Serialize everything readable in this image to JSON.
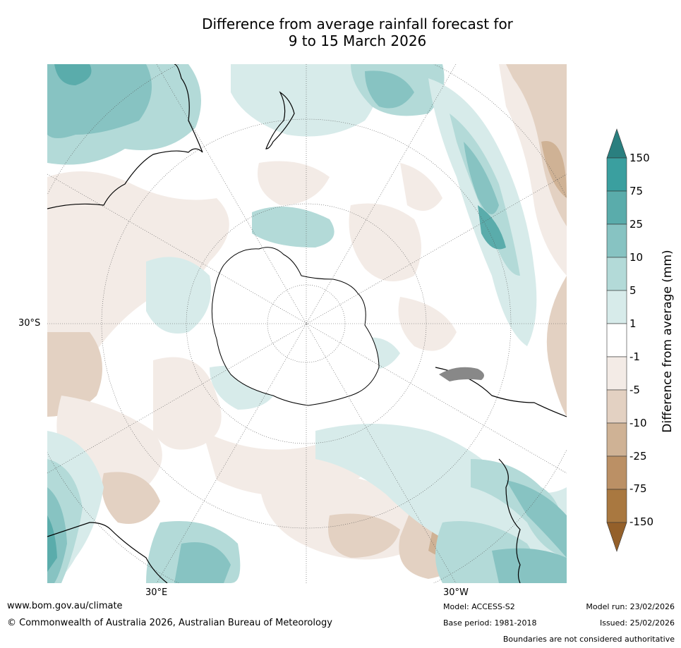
{
  "title_line1": "Difference from average rainfall forecast for",
  "title_line2": "9 to 15 March 2026",
  "colorbar": {
    "title": "Difference from average (mm)",
    "labels": [
      "150",
      "75",
      "25",
      "10",
      "5",
      "1",
      "-1",
      "-5",
      "-10",
      "-25",
      "-75",
      "-150"
    ],
    "colors": [
      "#2a7f7f",
      "#3a9f9f",
      "#5aacab",
      "#87c3c2",
      "#b3dad8",
      "#d7ebea",
      "#ffffff",
      "#f3ebe6",
      "#e3d1c2",
      "#cfb295",
      "#bb9065",
      "#a97840",
      "#94602a"
    ]
  },
  "axis_labels": {
    "left": "30°S",
    "bottom_left": "30°E",
    "bottom_right": "30°W"
  },
  "footer": {
    "website": "www.bom.gov.au/climate",
    "copyright": "© Commonwealth of Australia 2026, Australian Bureau of Meteorology",
    "model": "Model: ACCESS-S2",
    "base_period": "Base period: 1981-2018",
    "model_run": "Model run: 23/02/2026",
    "issued": "Issued: 25/02/2026",
    "disclaimer": "Boundaries are not considered authoritative"
  }
}
